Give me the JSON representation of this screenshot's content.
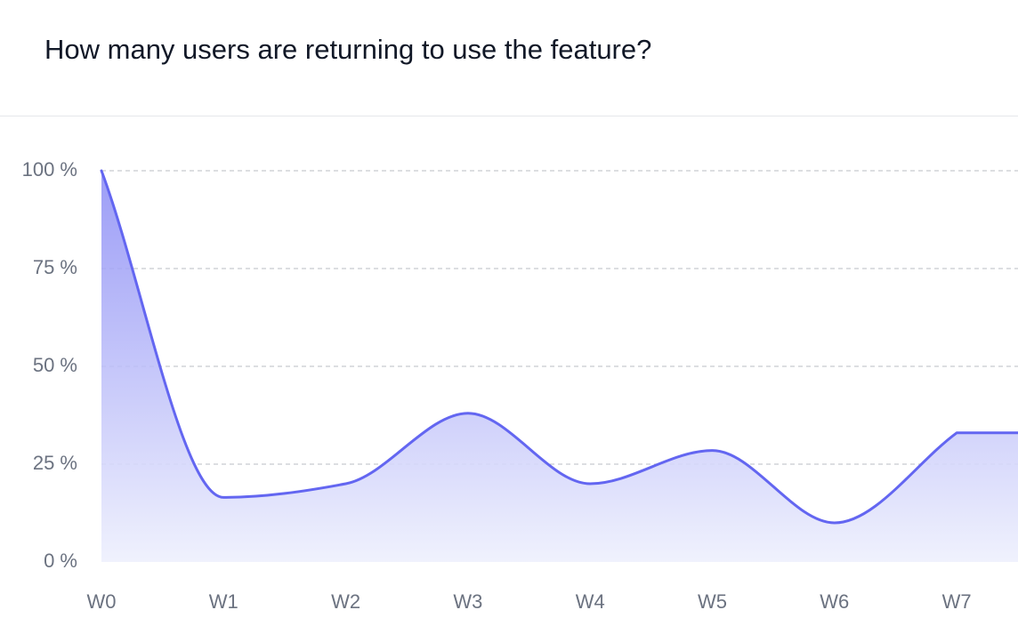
{
  "header": {
    "title": "How many users are returning to use the feature?"
  },
  "colors": {
    "line": "#6366f1",
    "fill_top": "#8b8cf5",
    "fill_bottom": "#eef0fd",
    "grid": "#c7c9cf",
    "tick_text": "#6b7280"
  },
  "chart_data": {
    "type": "area",
    "categories": [
      "W0",
      "W1",
      "W2",
      "W3",
      "W4",
      "W5",
      "W6",
      "W7"
    ],
    "series": [
      {
        "values": [
          100,
          16.5,
          20,
          38,
          20,
          28.5,
          10,
          33
        ]
      }
    ],
    "extend_last_value_to_edge": true,
    "ylim": [
      0,
      100
    ],
    "yticks": [
      0,
      25,
      50,
      75,
      100
    ],
    "ytick_labels": [
      "0 %",
      "25 %",
      "50 %",
      "75 %",
      "100 %"
    ],
    "grid": true,
    "grid_style": "dashed",
    "title": "How many users are returning to use the feature?",
    "xlabel": "",
    "ylabel": ""
  }
}
